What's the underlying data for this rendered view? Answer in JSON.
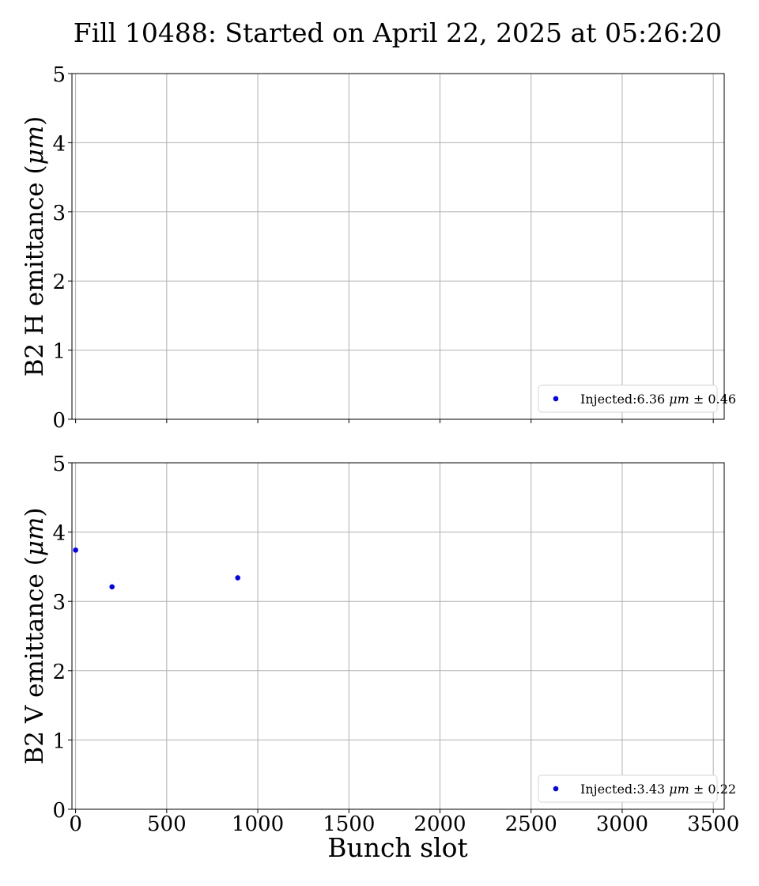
{
  "figure": {
    "title": "Fill 10488: Started on April 22, 2025 at 05:26:20",
    "xlabel": "Bunch slot",
    "colors": {
      "point": "#0000ff",
      "grid": "#b0b0b0",
      "axis": "#000000"
    }
  },
  "chart_data": [
    {
      "type": "scatter",
      "panel": "top",
      "ylabel_text": "B2 H emittance (",
      "ylabel_unit": "μm",
      "ylabel_close": ")",
      "xlim": [
        -20,
        3560
      ],
      "ylim": [
        0,
        5
      ],
      "xticks": [
        0,
        500,
        1000,
        1500,
        2000,
        2500,
        3000,
        3500
      ],
      "yticks": [
        0,
        1,
        2,
        3,
        4,
        5
      ],
      "grid": true,
      "legend_placement": "bottom-right",
      "series": [
        {
          "legend": {
            "prefix": "Injected:6.36 ",
            "unit": "μm",
            "suffix": " ± 0.46"
          },
          "points": []
        }
      ]
    },
    {
      "type": "scatter",
      "panel": "bottom",
      "ylabel_text": "B2 V emittance (",
      "ylabel_unit": "μm",
      "ylabel_close": ")",
      "xlim": [
        -20,
        3560
      ],
      "ylim": [
        0,
        5
      ],
      "xticks": [
        0,
        500,
        1000,
        1500,
        2000,
        2500,
        3000,
        3500
      ],
      "yticks": [
        0,
        1,
        2,
        3,
        4,
        5
      ],
      "grid": true,
      "legend_placement": "bottom-right",
      "series": [
        {
          "legend": {
            "prefix": "Injected:3.43 ",
            "unit": "μm",
            "suffix": " ± 0.22"
          },
          "points": [
            {
              "x": 0,
              "y": 3.74
            },
            {
              "x": 200,
              "y": 3.21
            },
            {
              "x": 890,
              "y": 3.34
            }
          ]
        }
      ]
    }
  ]
}
